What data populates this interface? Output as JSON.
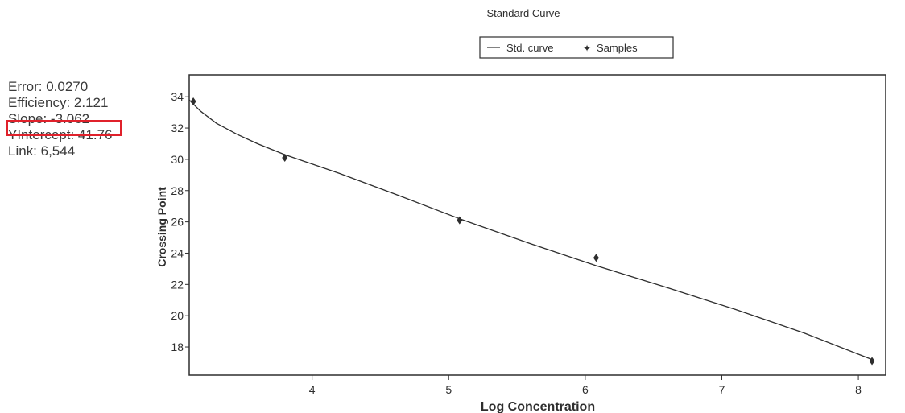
{
  "stats": {
    "error": "Error: 0.0270",
    "efficiency": "Efficiency: 2.121",
    "slope": "Slope: -3.062",
    "yintercept": "YIntercept: 41.76",
    "link": "Link: 6,544"
  },
  "colors": {
    "highlight": "#e0212b",
    "line": "#2e2e2e",
    "text": "#3a3a3a"
  },
  "chart_data": {
    "type": "scatter",
    "title": "Standard Curve",
    "xlabel": "Log Concentration",
    "ylabel": "Crossing Point",
    "xlim": [
      3.1,
      8.2
    ],
    "ylim": [
      16.2,
      35.4
    ],
    "xticks": [
      4,
      5,
      6,
      7,
      8
    ],
    "yticks": [
      18,
      20,
      22,
      24,
      26,
      28,
      30,
      32,
      34
    ],
    "grid": false,
    "legend_position": "top-center",
    "legend": [
      "Std. curve",
      "Samples"
    ],
    "series": [
      {
        "name": "Samples",
        "kind": "points",
        "x": [
          3.13,
          3.8,
          5.08,
          6.08,
          8.1
        ],
        "y": [
          33.7,
          30.1,
          26.1,
          23.7,
          17.1
        ]
      },
      {
        "name": "Std. curve",
        "kind": "line",
        "x": [
          3.1,
          3.18,
          3.3,
          3.45,
          3.6,
          3.8,
          4.2,
          4.6,
          5.08,
          5.6,
          6.08,
          6.6,
          7.1,
          7.6,
          8.1
        ],
        "y": [
          33.8,
          33.1,
          32.3,
          31.6,
          31.0,
          30.3,
          29.1,
          27.8,
          26.2,
          24.6,
          23.2,
          21.8,
          20.4,
          18.9,
          17.2
        ]
      }
    ]
  }
}
